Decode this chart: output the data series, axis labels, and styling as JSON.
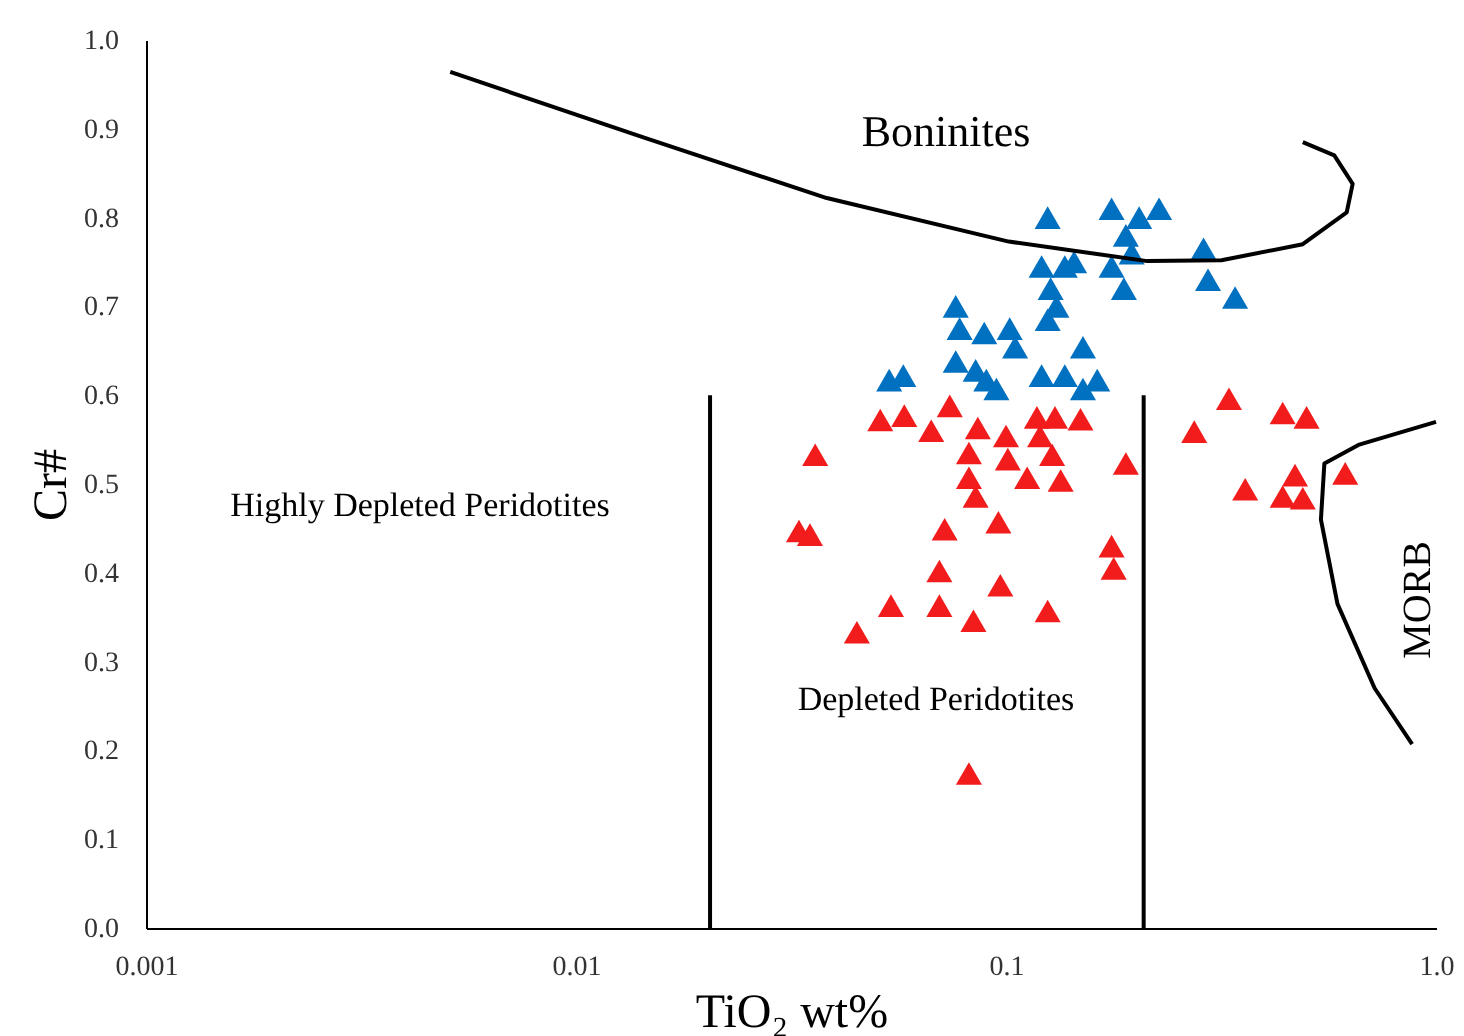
{
  "chart_data": {
    "type": "scatter",
    "xlabel": "TiO₂ wt%",
    "ylabel": "Cr#",
    "log": "x",
    "grid": false,
    "xlim": [
      0.001,
      1
    ],
    "xticks": [
      0.001,
      0.01,
      0.1,
      {
        "value": 1,
        "label": "1.0"
      }
    ],
    "ylim": [
      0,
      1
    ],
    "yticks": [
      {
        "value": 0,
        "label": "0.0"
      },
      0.1,
      0.2,
      0.3,
      0.4,
      0.5,
      0.6,
      0.7,
      0.8,
      0.9,
      {
        "value": 1,
        "label": "1.0"
      }
    ],
    "annotations": [
      "Boninites",
      "Highly Depleted Peridotites",
      "Depleted Peridotites",
      "MORB"
    ],
    "series": [
      {
        "marker": "triangle",
        "color": "#0070c0",
        "x": [
          0.125,
          0.176,
          0.204,
          0.227,
          0.19,
          0.196,
          0.288,
          0.295,
          0.341,
          0.176,
          0.188,
          0.121,
          0.137,
          0.144,
          0.127,
          0.131,
          0.125,
          0.0764,
          0.078,
          0.089,
          0.102,
          0.105,
          0.0535,
          0.0577,
          0.0764,
          0.085,
          0.09,
          0.095,
          0.121,
          0.137,
          0.151,
          0.151,
          0.163
        ],
        "values": [
          0.8,
          0.81,
          0.8,
          0.81,
          0.78,
          0.76,
          0.765,
          0.73,
          0.71,
          0.745,
          0.72,
          0.745,
          0.745,
          0.75,
          0.72,
          0.7,
          0.685,
          0.7,
          0.675,
          0.67,
          0.675,
          0.654,
          0.617,
          0.622,
          0.638,
          0.628,
          0.617,
          0.607,
          0.622,
          0.622,
          0.654,
          0.607,
          0.617
        ]
      },
      {
        "marker": "triangle",
        "color": "#f21c1c",
        "x": [
          0.051,
          0.058,
          0.067,
          0.074,
          0.086,
          0.1,
          0.118,
          0.13,
          0.149,
          0.12,
          0.082,
          0.101,
          0.112,
          0.128,
          0.134,
          0.19,
          0.082,
          0.085,
          0.036,
          0.033,
          0.035,
          0.072,
          0.096,
          0.176,
          0.178,
          0.07,
          0.097,
          0.07,
          0.084,
          0.125,
          0.054,
          0.045,
          0.082,
          0.274,
          0.33,
          0.44,
          0.5,
          0.36,
          0.44,
          0.47,
          0.49,
          0.615
        ],
        "values": [
          0.572,
          0.577,
          0.56,
          0.588,
          0.563,
          0.554,
          0.575,
          0.575,
          0.573,
          0.554,
          0.535,
          0.528,
          0.507,
          0.533,
          0.504,
          0.523,
          0.507,
          0.486,
          0.533,
          0.447,
          0.443,
          0.449,
          0.457,
          0.43,
          0.405,
          0.402,
          0.386,
          0.363,
          0.346,
          0.357,
          0.363,
          0.333,
          0.174,
          0.559,
          0.596,
          0.58,
          0.575,
          0.494,
          0.486,
          0.51,
          0.484,
          0.512
        ]
      },
      {
        "type": "line",
        "color": "#000000",
        "x": [
          0.0051,
          0.0144,
          0.0383,
          0.1015,
          0.213,
          0.317,
          0.49,
          0.62,
          0.64,
          0.58,
          0.49
        ],
        "values": [
          0.964,
          0.89,
          0.822,
          0.773,
          0.751,
          0.752,
          0.77,
          0.806,
          0.838,
          0.87,
          0.885
        ]
      },
      {
        "type": "line",
        "color": "#000000",
        "x": [
          1.0,
          0.66,
          0.55,
          0.54,
          0.59,
          0.72,
          0.88
        ],
        "values": [
          0.57,
          0.544,
          0.523,
          0.46,
          0.365,
          0.27,
          0.207
        ]
      },
      {
        "type": "line",
        "color": "#000000",
        "x": [
          0.0205,
          0.0205
        ],
        "values": [
          0,
          0.6
        ]
      },
      {
        "type": "line",
        "color": "#000000",
        "x": [
          0.209,
          0.209
        ],
        "values": [
          0,
          0.6
        ]
      }
    ]
  }
}
